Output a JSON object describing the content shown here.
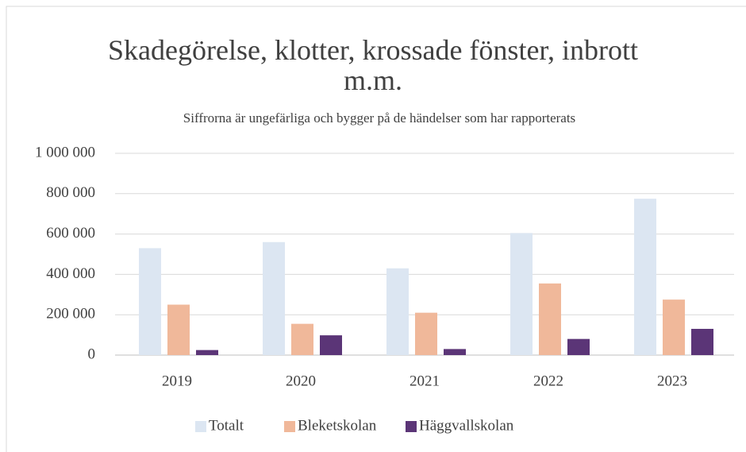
{
  "chart_data": {
    "type": "bar",
    "title": "Skadegörelse, klotter, krossade fönster, inbrott m.m.",
    "subtitle": "Siffrorna är ungefärliga och bygger på de händelser som har rapporterats",
    "categories": [
      "2019",
      "2020",
      "2021",
      "2022",
      "2023"
    ],
    "series": [
      {
        "name": "Totalt",
        "color": "#dce6f2",
        "values": [
          530000,
          560000,
          430000,
          605000,
          775000
        ]
      },
      {
        "name": "Bleketskolan",
        "color": "#f0b89a",
        "values": [
          250000,
          155000,
          210000,
          355000,
          275000
        ]
      },
      {
        "name": "Häggvallskolan",
        "color": "#5b3577",
        "values": [
          25000,
          98000,
          30000,
          80000,
          130000
        ]
      }
    ],
    "ylim": [
      0,
      1000000
    ],
    "yticks": [
      0,
      {
        "value": 200000,
        "label": "200 000"
      },
      {
        "value": 400000,
        "label": "400 000"
      },
      {
        "value": 600000,
        "label": "600 000"
      },
      {
        "value": 800000,
        "label": "800 000"
      },
      {
        "value": 1000000,
        "label": "1 000 000"
      }
    ],
    "grid": true,
    "legend": "bottom"
  }
}
